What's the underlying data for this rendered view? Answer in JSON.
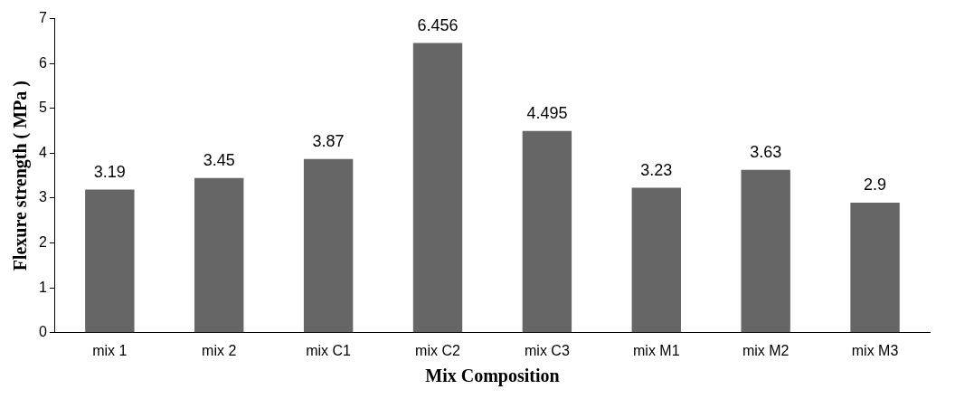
{
  "chart_data": {
    "type": "bar",
    "xlabel": "Mix Composition",
    "ylabel": "Flexure strength ( MPa )",
    "categories": [
      "mix 1",
      "mix 2",
      "mix C1",
      "mix C2",
      "mix C3",
      "mix M1",
      "mix M2",
      "mix M3"
    ],
    "values": [
      3.19,
      3.45,
      3.87,
      6.456,
      4.495,
      3.23,
      3.63,
      2.9
    ],
    "color": "#666666",
    "ylim": [
      0,
      7
    ],
    "yticks": [
      0,
      1,
      2,
      3,
      4,
      5,
      6,
      7
    ],
    "grid": false,
    "legend": false,
    "data_labels": true
  }
}
